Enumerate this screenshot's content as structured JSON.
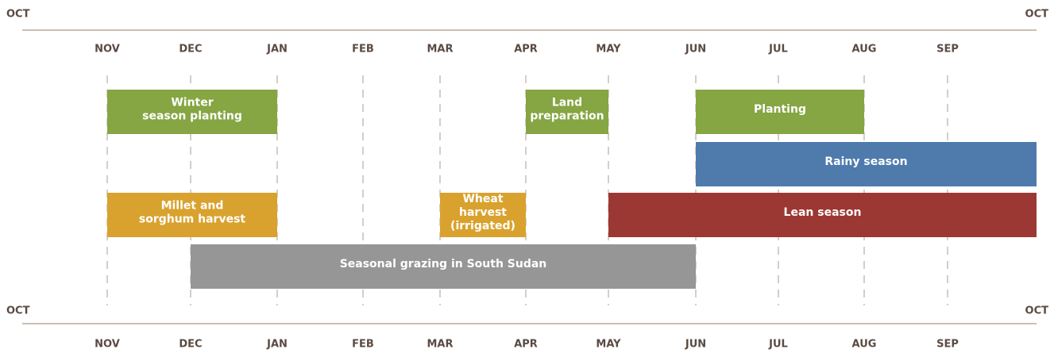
{
  "months": [
    "OCT",
    "NOV",
    "DEC",
    "JAN",
    "FEB",
    "MAR",
    "APR",
    "MAY",
    "JUN",
    "JUL",
    "AUG",
    "SEP",
    "OCT"
  ],
  "activities": [
    {
      "label": [
        "Winter",
        "season planting"
      ],
      "from": "NOV",
      "to": "JAN",
      "color": "#86a543",
      "row": 0
    },
    {
      "label": [
        "Land",
        "preparation"
      ],
      "from": "APR",
      "to": "MAY",
      "color": "#86a543",
      "row": 0
    },
    {
      "label": [
        "Planting"
      ],
      "from": "JUN",
      "to": "AUG",
      "color": "#86a543",
      "row": 0
    },
    {
      "label": [
        "Rainy season"
      ],
      "from": "JUN",
      "to": "OCT",
      "color": "#4e7aac",
      "row": 1
    },
    {
      "label": [
        "Millet and",
        "sorghum harvest"
      ],
      "from": "NOV",
      "to": "JAN",
      "color": "#d9a22e",
      "row": 2
    },
    {
      "label": [
        "Wheat",
        "harvest",
        "(irrigated)"
      ],
      "from": "MAR",
      "to": "APR",
      "color": "#d9a22e",
      "row": 2
    },
    {
      "label": [
        "Lean season"
      ],
      "from": "MAY",
      "to": "OCT",
      "color": "#9c3833",
      "row": 2
    },
    {
      "label": [
        "Seasonal grazing in South Sudan"
      ],
      "from": "DEC",
      "to": "JUN",
      "color": "#969696",
      "row": 3
    }
  ]
}
